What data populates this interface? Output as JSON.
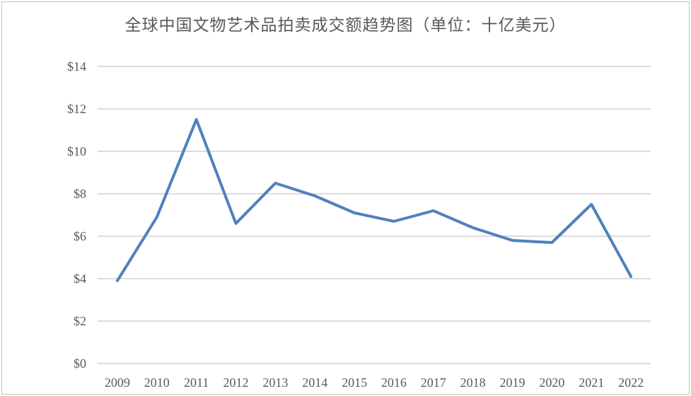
{
  "chart_data": {
    "type": "line",
    "title": "全球中国文物艺术品拍卖成交额趋势图（单位：十亿美元）",
    "categories": [
      "2009",
      "2010",
      "2011",
      "2012",
      "2013",
      "2014",
      "2015",
      "2016",
      "2017",
      "2018",
      "2019",
      "2020",
      "2021",
      "2022"
    ],
    "series": [
      {
        "name": "全球中国文物艺术品拍卖成交额",
        "values": [
          3.9,
          6.9,
          11.5,
          6.6,
          8.5,
          7.9,
          7.1,
          6.7,
          7.2,
          6.4,
          5.8,
          5.7,
          7.5,
          4.1
        ]
      }
    ],
    "xlabel": "",
    "ylabel": "",
    "ylim": [
      0,
      14
    ],
    "yticks": [
      0,
      2,
      4,
      6,
      8,
      10,
      12,
      14
    ],
    "ytick_prefix": "$",
    "grid": true,
    "legend": "none",
    "colors": {
      "line": "#4F81BD",
      "gridline": "#DCDCDC",
      "tick_label": "#595959",
      "title": "#595959",
      "frame_border": "#BFBFBF",
      "background": "#FFFFFF"
    }
  }
}
